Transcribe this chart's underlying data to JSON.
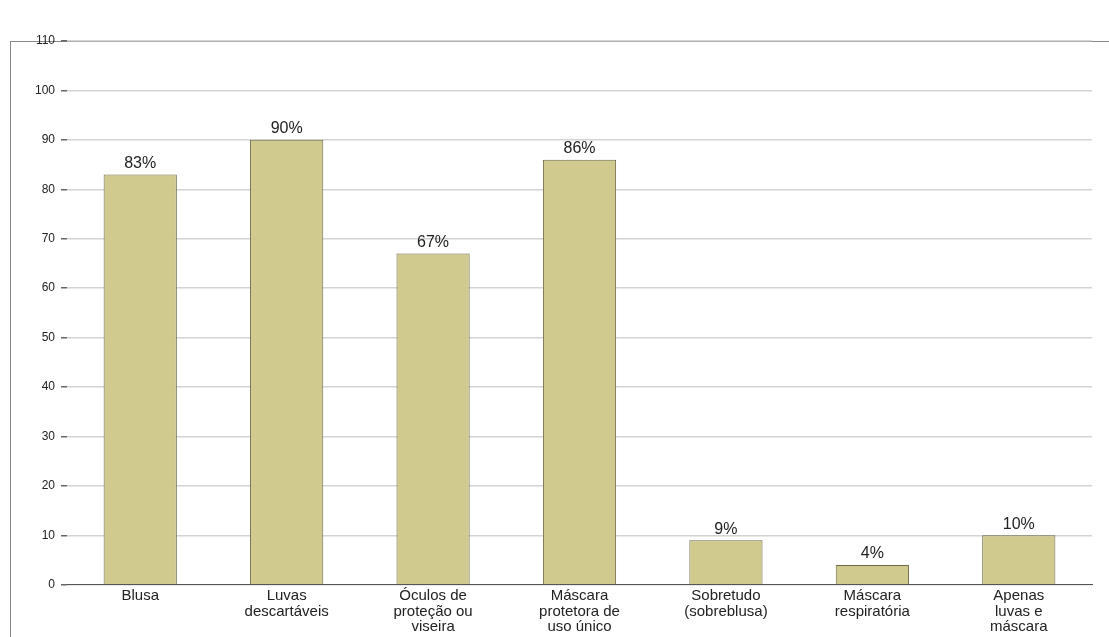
{
  "chart_data": {
    "type": "bar",
    "categories": [
      "Blusa",
      "Luvas descartáveis",
      "Óculos de proteção ou viseira",
      "Máscara protetora de uso único",
      "Sobretudo (sobreblusa)",
      "Máscara respiratória",
      "Apenas luvas e máscara"
    ],
    "values": [
      83,
      90,
      67,
      86,
      9,
      4,
      10
    ],
    "value_labels": [
      "83%",
      "90%",
      "67%",
      "86%",
      "9%",
      "4%",
      "10%"
    ],
    "color": "#d0ca8f",
    "ylim": [
      0,
      110
    ],
    "yticks": [
      0,
      10,
      20,
      30,
      40,
      50,
      60,
      70,
      80,
      90,
      100,
      110
    ],
    "grid": "y"
  }
}
